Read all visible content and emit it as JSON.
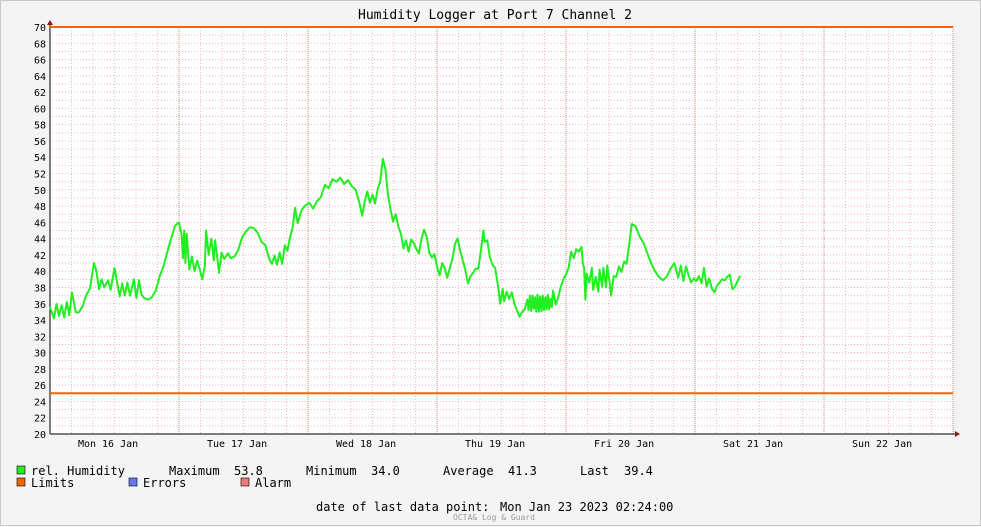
{
  "chart_data": {
    "type": "line",
    "title": "Humidity Logger at Port 7 Channel 2",
    "ylim": [
      20,
      70
    ],
    "y_ticks": [
      20,
      22,
      24,
      26,
      28,
      30,
      32,
      34,
      36,
      38,
      40,
      42,
      44,
      46,
      48,
      50,
      52,
      54,
      56,
      58,
      60,
      62,
      64,
      66,
      68,
      70
    ],
    "x_range_days": [
      0,
      7
    ],
    "x_tick_labels": [
      "Mon 16 Jan",
      "Tue 17 Jan",
      "Wed 18 Jan",
      "Thu 19 Jan",
      "Fri 20 Jan",
      "Sat 21 Jan",
      "Sun 22 Jan"
    ],
    "grid": true,
    "series": [
      {
        "name": "rel. Humidity",
        "color": "#22ee22",
        "points": [
          [
            0.0,
            35.6
          ],
          [
            0.03,
            34.2
          ],
          [
            0.05,
            36.0
          ],
          [
            0.07,
            34.5
          ],
          [
            0.09,
            35.8
          ],
          [
            0.11,
            34.3
          ],
          [
            0.13,
            36.2
          ],
          [
            0.15,
            34.6
          ],
          [
            0.17,
            37.4
          ],
          [
            0.2,
            35.0
          ],
          [
            0.22,
            34.9
          ],
          [
            0.25,
            35.6
          ],
          [
            0.28,
            37.0
          ],
          [
            0.31,
            37.9
          ],
          [
            0.34,
            41.0
          ],
          [
            0.36,
            40.0
          ],
          [
            0.38,
            37.8
          ],
          [
            0.4,
            39.0
          ],
          [
            0.42,
            38.0
          ],
          [
            0.45,
            38.9
          ],
          [
            0.47,
            37.7
          ],
          [
            0.5,
            40.4
          ],
          [
            0.52,
            38.6
          ],
          [
            0.54,
            36.9
          ],
          [
            0.56,
            38.5
          ],
          [
            0.58,
            37.0
          ],
          [
            0.6,
            38.6
          ],
          [
            0.62,
            37.0
          ],
          [
            0.65,
            39.0
          ],
          [
            0.67,
            36.7
          ],
          [
            0.69,
            38.9
          ],
          [
            0.71,
            37.1
          ],
          [
            0.73,
            36.7
          ],
          [
            0.76,
            36.5
          ],
          [
            0.79,
            36.8
          ],
          [
            0.82,
            37.6
          ],
          [
            0.85,
            39.4
          ],
          [
            0.88,
            40.6
          ],
          [
            0.91,
            42.4
          ],
          [
            0.94,
            44.1
          ],
          [
            0.97,
            45.6
          ],
          [
            1.0,
            46.0
          ],
          [
            1.02,
            44.5
          ],
          [
            1.03,
            41.6
          ],
          [
            1.04,
            45.0
          ],
          [
            1.05,
            41.0
          ],
          [
            1.06,
            44.6
          ],
          [
            1.08,
            40.2
          ],
          [
            1.1,
            41.8
          ],
          [
            1.12,
            40.0
          ],
          [
            1.14,
            41.3
          ],
          [
            1.16,
            40.3
          ],
          [
            1.18,
            39.0
          ],
          [
            1.2,
            40.6
          ],
          [
            1.21,
            45.0
          ],
          [
            1.23,
            42.0
          ],
          [
            1.25,
            44.0
          ],
          [
            1.27,
            41.3
          ],
          [
            1.28,
            43.8
          ],
          [
            1.3,
            41.2
          ],
          [
            1.31,
            39.8
          ],
          [
            1.33,
            42.3
          ],
          [
            1.35,
            41.5
          ],
          [
            1.38,
            42.2
          ],
          [
            1.4,
            41.6
          ],
          [
            1.43,
            41.8
          ],
          [
            1.46,
            42.6
          ],
          [
            1.49,
            44.2
          ],
          [
            1.52,
            44.9
          ],
          [
            1.55,
            45.4
          ],
          [
            1.58,
            45.3
          ],
          [
            1.61,
            44.7
          ],
          [
            1.64,
            43.6
          ],
          [
            1.67,
            43.2
          ],
          [
            1.7,
            41.5
          ],
          [
            1.72,
            40.9
          ],
          [
            1.74,
            41.9
          ],
          [
            1.76,
            40.8
          ],
          [
            1.78,
            42.3
          ],
          [
            1.8,
            40.9
          ],
          [
            1.82,
            43.2
          ],
          [
            1.84,
            42.5
          ],
          [
            1.86,
            44.1
          ],
          [
            1.88,
            45.3
          ],
          [
            1.9,
            47.8
          ],
          [
            1.92,
            45.9
          ],
          [
            1.95,
            47.5
          ],
          [
            1.98,
            48.1
          ],
          [
            2.01,
            48.4
          ],
          [
            2.04,
            47.7
          ],
          [
            2.07,
            48.6
          ],
          [
            2.1,
            49.1
          ],
          [
            2.13,
            50.6
          ],
          [
            2.16,
            50.2
          ],
          [
            2.19,
            51.3
          ],
          [
            2.22,
            51.0
          ],
          [
            2.25,
            51.5
          ],
          [
            2.28,
            50.7
          ],
          [
            2.31,
            51.2
          ],
          [
            2.34,
            50.4
          ],
          [
            2.37,
            50.0
          ],
          [
            2.4,
            48.3
          ],
          [
            2.42,
            46.8
          ],
          [
            2.44,
            48.6
          ],
          [
            2.46,
            49.8
          ],
          [
            2.48,
            48.4
          ],
          [
            2.5,
            49.4
          ],
          [
            2.52,
            48.3
          ],
          [
            2.54,
            50.1
          ],
          [
            2.56,
            51.0
          ],
          [
            2.58,
            53.8
          ],
          [
            2.6,
            52.5
          ],
          [
            2.62,
            49.4
          ],
          [
            2.64,
            47.5
          ],
          [
            2.66,
            46.1
          ],
          [
            2.68,
            47.0
          ],
          [
            2.7,
            45.5
          ],
          [
            2.72,
            44.6
          ],
          [
            2.74,
            42.8
          ],
          [
            2.76,
            43.8
          ],
          [
            2.78,
            42.4
          ],
          [
            2.8,
            43.9
          ],
          [
            2.82,
            43.5
          ],
          [
            2.84,
            42.7
          ],
          [
            2.86,
            42.2
          ],
          [
            2.88,
            44.0
          ],
          [
            2.9,
            45.1
          ],
          [
            2.92,
            44.2
          ],
          [
            2.94,
            42.3
          ],
          [
            2.96,
            41.7
          ],
          [
            2.98,
            42.1
          ],
          [
            3.0,
            40.6
          ],
          [
            3.02,
            39.5
          ],
          [
            3.04,
            41.0
          ],
          [
            3.06,
            40.4
          ],
          [
            3.08,
            39.2
          ],
          [
            3.1,
            40.4
          ],
          [
            3.12,
            41.6
          ],
          [
            3.14,
            43.4
          ],
          [
            3.16,
            44.0
          ],
          [
            3.18,
            42.5
          ],
          [
            3.2,
            41.3
          ],
          [
            3.22,
            40.1
          ],
          [
            3.24,
            38.5
          ],
          [
            3.26,
            39.4
          ],
          [
            3.28,
            39.8
          ],
          [
            3.3,
            40.3
          ],
          [
            3.32,
            40.3
          ],
          [
            3.34,
            42.5
          ],
          [
            3.36,
            45.0
          ],
          [
            3.37,
            43.6
          ],
          [
            3.39,
            43.8
          ],
          [
            3.41,
            41.7
          ],
          [
            3.43,
            40.8
          ],
          [
            3.45,
            40.4
          ],
          [
            3.47,
            38.5
          ],
          [
            3.48,
            37.4
          ],
          [
            3.49,
            36.0
          ],
          [
            3.51,
            37.8
          ],
          [
            3.52,
            36.3
          ],
          [
            3.54,
            37.5
          ],
          [
            3.56,
            36.6
          ],
          [
            3.58,
            37.4
          ],
          [
            3.6,
            36.0
          ],
          [
            3.62,
            35.2
          ],
          [
            3.64,
            34.4
          ],
          [
            3.66,
            35.0
          ],
          [
            3.68,
            35.3
          ],
          [
            3.7,
            36.5
          ],
          [
            3.71,
            35.2
          ],
          [
            3.72,
            37.0
          ],
          [
            3.73,
            35.1
          ],
          [
            3.74,
            37.0
          ],
          [
            3.75,
            35.4
          ],
          [
            3.76,
            36.8
          ],
          [
            3.77,
            35.0
          ],
          [
            3.78,
            37.1
          ],
          [
            3.79,
            35.0
          ],
          [
            3.8,
            36.9
          ],
          [
            3.81,
            35.1
          ],
          [
            3.82,
            37.0
          ],
          [
            3.83,
            35.2
          ],
          [
            3.84,
            36.8
          ],
          [
            3.85,
            35.3
          ],
          [
            3.86,
            37.1
          ],
          [
            3.87,
            35.3
          ],
          [
            3.88,
            36.6
          ],
          [
            3.89,
            35.6
          ],
          [
            3.9,
            37.6
          ],
          [
            3.92,
            35.9
          ],
          [
            3.94,
            36.8
          ],
          [
            3.96,
            38.1
          ],
          [
            3.98,
            39.0
          ],
          [
            4.0,
            39.6
          ],
          [
            4.02,
            40.4
          ],
          [
            4.04,
            42.4
          ],
          [
            4.06,
            41.6
          ],
          [
            4.08,
            42.7
          ],
          [
            4.1,
            42.4
          ],
          [
            4.12,
            43.0
          ],
          [
            4.13,
            41.0
          ],
          [
            4.14,
            40.4
          ],
          [
            4.15,
            36.5
          ],
          [
            4.16,
            39.7
          ],
          [
            4.18,
            38.6
          ],
          [
            4.2,
            40.4
          ],
          [
            4.21,
            37.7
          ],
          [
            4.23,
            39.3
          ],
          [
            4.25,
            37.5
          ],
          [
            4.26,
            40.2
          ],
          [
            4.28,
            38.1
          ],
          [
            4.29,
            40.4
          ],
          [
            4.31,
            38.0
          ],
          [
            4.32,
            40.7
          ],
          [
            4.34,
            38.3
          ],
          [
            4.35,
            37.0
          ],
          [
            4.37,
            39.4
          ],
          [
            4.39,
            39.3
          ],
          [
            4.41,
            40.6
          ],
          [
            4.43,
            39.9
          ],
          [
            4.45,
            41.2
          ],
          [
            4.47,
            40.9
          ],
          [
            4.49,
            43.3
          ],
          [
            4.51,
            45.8
          ],
          [
            4.54,
            45.5
          ],
          [
            4.57,
            44.3
          ],
          [
            4.6,
            43.5
          ],
          [
            4.63,
            42.2
          ],
          [
            4.66,
            41.0
          ],
          [
            4.69,
            40.0
          ],
          [
            4.72,
            39.3
          ],
          [
            4.75,
            38.9
          ],
          [
            4.78,
            39.3
          ],
          [
            4.81,
            40.3
          ],
          [
            4.84,
            41.0
          ],
          [
            4.87,
            39.2
          ],
          [
            4.89,
            40.7
          ],
          [
            4.91,
            38.8
          ],
          [
            4.93,
            40.6
          ],
          [
            4.95,
            39.5
          ],
          [
            4.97,
            38.6
          ],
          [
            4.99,
            39.1
          ],
          [
            5.01,
            38.8
          ],
          [
            5.03,
            39.4
          ],
          [
            5.05,
            38.5
          ],
          [
            5.07,
            40.4
          ],
          [
            5.09,
            38.1
          ],
          [
            5.11,
            39.1
          ],
          [
            5.13,
            37.9
          ],
          [
            5.15,
            37.4
          ],
          [
            5.17,
            38.2
          ],
          [
            5.19,
            38.6
          ],
          [
            5.21,
            39.0
          ],
          [
            5.23,
            38.9
          ],
          [
            5.25,
            39.3
          ],
          [
            5.27,
            39.6
          ],
          [
            5.29,
            37.8
          ],
          [
            5.31,
            38.1
          ],
          [
            5.33,
            38.8
          ],
          [
            5.35,
            39.4
          ]
        ]
      },
      {
        "name": "Limits",
        "color": "#ee6600",
        "points": [
          [
            0,
            70
          ],
          [
            7,
            70
          ]
        ]
      },
      {
        "name": "Limits",
        "color": "#ee6600",
        "points": [
          [
            0,
            25
          ],
          [
            7,
            25
          ]
        ]
      }
    ],
    "legend": [
      {
        "label": "rel. Humidity",
        "color": "#22ee22"
      },
      {
        "label": "Limits",
        "color": "#ee6600"
      },
      {
        "label": "Errors",
        "color": "#6677ee"
      },
      {
        "label": "Alarm",
        "color": "#ee7777"
      }
    ],
    "stats": {
      "maximum_label": "Maximum",
      "maximum": "53.8",
      "minimum_label": "Minimum",
      "minimum": "34.0",
      "average_label": "Average",
      "average": "41.3",
      "last_label": "Last",
      "last": "39.4"
    },
    "footer": {
      "date_label": "date of last data point:",
      "date_value": "Mon Jan 23 2023 02:24:00",
      "watermark": "OCTA& Log & Guard"
    }
  }
}
